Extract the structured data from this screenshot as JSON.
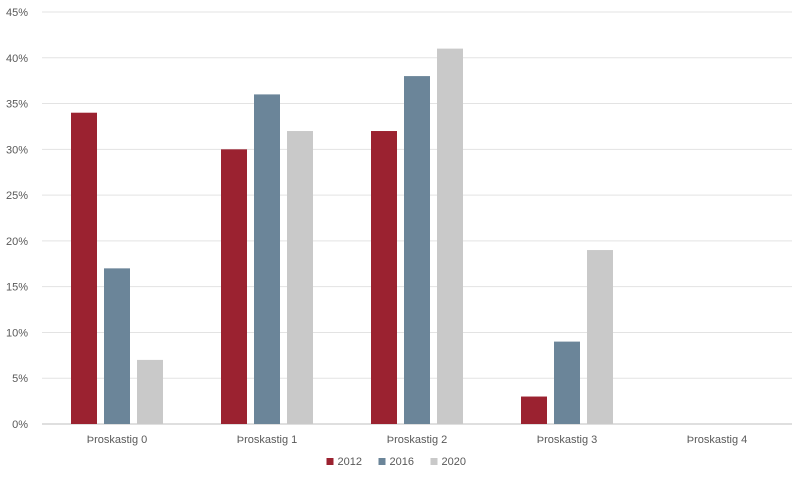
{
  "chart_data": {
    "type": "bar",
    "categories": [
      "Þroskastig 0",
      "Þroskastig 1",
      "Þroskastig 2",
      "Þroskastig 3",
      "Þroskastig 4"
    ],
    "series": [
      {
        "name": "2012",
        "color": "#9b2230",
        "values": [
          34,
          30,
          32,
          3,
          0
        ]
      },
      {
        "name": "2016",
        "color": "#6b8599",
        "values": [
          17,
          36,
          38,
          9,
          0
        ]
      },
      {
        "name": "2020",
        "color": "#c9c9c9",
        "values": [
          7,
          32,
          41,
          19,
          0
        ]
      }
    ],
    "ylim": [
      0,
      45
    ],
    "yticks": [
      0,
      5,
      10,
      15,
      20,
      25,
      30,
      35,
      40,
      45
    ],
    "ytick_labels": [
      "0%",
      "5%",
      "10%",
      "15%",
      "20%",
      "25%",
      "30%",
      "35%",
      "40%",
      "45%"
    ],
    "grid": true,
    "legend_position": "bottom"
  }
}
